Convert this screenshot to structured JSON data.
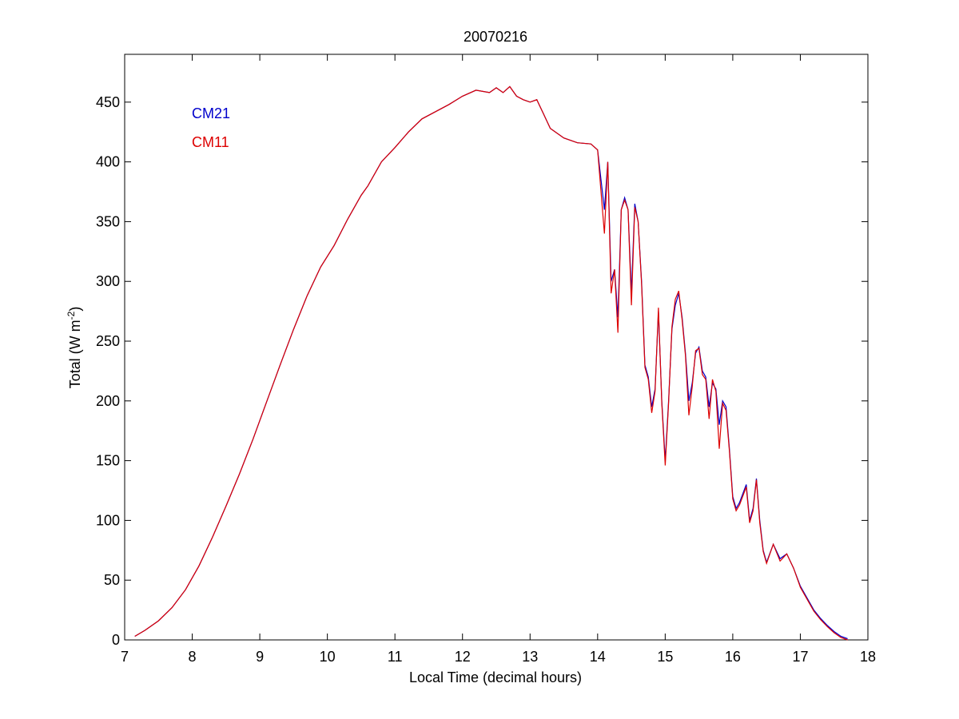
{
  "chart_data": {
    "type": "line",
    "title": "20070216",
    "xlabel": "Local Time (decimal hours)",
    "ylabel_base": "Total (W m",
    "ylabel_sup": "-2",
    "ylabel_tail": ")",
    "xlim": [
      7,
      18
    ],
    "ylim": [
      0,
      490
    ],
    "xticks": [
      7,
      8,
      9,
      10,
      11,
      12,
      13,
      14,
      15,
      16,
      17,
      18
    ],
    "yticks": [
      0,
      50,
      100,
      150,
      200,
      250,
      300,
      350,
      400,
      450
    ],
    "grid": false,
    "legend_position": "top-left",
    "series": [
      {
        "name": "CM21",
        "color": "#0000cc",
        "x": [
          7.15,
          7.3,
          7.5,
          7.7,
          7.9,
          8.1,
          8.3,
          8.5,
          8.7,
          8.9,
          9.1,
          9.3,
          9.5,
          9.7,
          9.9,
          10.1,
          10.3,
          10.5,
          10.6,
          10.8,
          11.0,
          11.2,
          11.4,
          11.6,
          11.8,
          12.0,
          12.2,
          12.4,
          12.5,
          12.6,
          12.7,
          12.8,
          12.9,
          13.0,
          13.1,
          13.2,
          13.3,
          13.5,
          13.7,
          13.9,
          14.0,
          14.1,
          14.15,
          14.2,
          14.25,
          14.3,
          14.35,
          14.4,
          14.45,
          14.5,
          14.55,
          14.6,
          14.65,
          14.7,
          14.75,
          14.8,
          14.85,
          14.9,
          14.95,
          15.0,
          15.05,
          15.1,
          15.15,
          15.2,
          15.25,
          15.3,
          15.35,
          15.4,
          15.45,
          15.5,
          15.55,
          15.6,
          15.65,
          15.7,
          15.75,
          15.8,
          15.85,
          15.9,
          15.95,
          16.0,
          16.05,
          16.1,
          16.2,
          16.25,
          16.3,
          16.35,
          16.4,
          16.45,
          16.5,
          16.6,
          16.7,
          16.8,
          16.9,
          17.0,
          17.1,
          17.2,
          17.3,
          17.4,
          17.5,
          17.6,
          17.7
        ],
        "y": [
          3,
          8,
          16,
          27,
          42,
          62,
          86,
          112,
          139,
          168,
          199,
          230,
          260,
          288,
          312,
          330,
          352,
          372,
          380,
          400,
          412,
          425,
          436,
          442,
          448,
          455,
          460,
          458,
          462,
          458,
          463,
          455,
          452,
          450,
          452,
          440,
          428,
          420,
          416,
          415,
          410,
          360,
          400,
          300,
          310,
          270,
          360,
          370,
          360,
          290,
          365,
          350,
          300,
          230,
          220,
          195,
          210,
          275,
          200,
          150,
          200,
          260,
          280,
          290,
          270,
          240,
          200,
          215,
          240,
          245,
          225,
          220,
          195,
          215,
          210,
          180,
          200,
          195,
          160,
          120,
          110,
          115,
          130,
          100,
          110,
          135,
          100,
          75,
          65,
          80,
          68,
          72,
          60,
          45,
          35,
          25,
          18,
          12,
          7,
          3,
          1
        ]
      },
      {
        "name": "CM11",
        "color": "#dd0000",
        "x": [
          7.15,
          7.3,
          7.5,
          7.7,
          7.9,
          8.1,
          8.3,
          8.5,
          8.7,
          8.9,
          9.1,
          9.3,
          9.5,
          9.7,
          9.9,
          10.1,
          10.3,
          10.5,
          10.6,
          10.8,
          11.0,
          11.2,
          11.4,
          11.6,
          11.8,
          12.0,
          12.2,
          12.4,
          12.5,
          12.6,
          12.7,
          12.8,
          12.9,
          13.0,
          13.1,
          13.2,
          13.3,
          13.5,
          13.7,
          13.9,
          14.0,
          14.1,
          14.15,
          14.2,
          14.25,
          14.3,
          14.35,
          14.4,
          14.45,
          14.5,
          14.55,
          14.6,
          14.65,
          14.7,
          14.75,
          14.8,
          14.85,
          14.9,
          14.95,
          15.0,
          15.05,
          15.1,
          15.15,
          15.2,
          15.25,
          15.3,
          15.35,
          15.4,
          15.45,
          15.5,
          15.55,
          15.6,
          15.65,
          15.7,
          15.75,
          15.8,
          15.85,
          15.9,
          15.95,
          16.0,
          16.05,
          16.1,
          16.2,
          16.25,
          16.3,
          16.35,
          16.4,
          16.45,
          16.5,
          16.6,
          16.7,
          16.8,
          16.9,
          17.0,
          17.1,
          17.2,
          17.3,
          17.4,
          17.5,
          17.6,
          17.7
        ],
        "y": [
          3,
          8,
          16,
          27,
          42,
          62,
          86,
          112,
          139,
          168,
          199,
          230,
          260,
          288,
          312,
          330,
          352,
          372,
          380,
          400,
          412,
          425,
          436,
          442,
          448,
          455,
          460,
          458,
          462,
          458,
          463,
          455,
          452,
          450,
          452,
          440,
          428,
          420,
          416,
          415,
          410,
          340,
          400,
          290,
          310,
          257,
          360,
          368,
          360,
          280,
          362,
          350,
          298,
          228,
          218,
          190,
          208,
          278,
          198,
          146,
          198,
          262,
          285,
          292,
          268,
          238,
          188,
          212,
          242,
          244,
          222,
          218,
          185,
          218,
          208,
          160,
          198,
          192,
          158,
          118,
          108,
          113,
          128,
          98,
          108,
          134,
          98,
          74,
          64,
          80,
          66,
          72,
          60,
          44,
          34,
          24,
          17,
          11,
          6,
          2,
          0
        ]
      }
    ]
  }
}
